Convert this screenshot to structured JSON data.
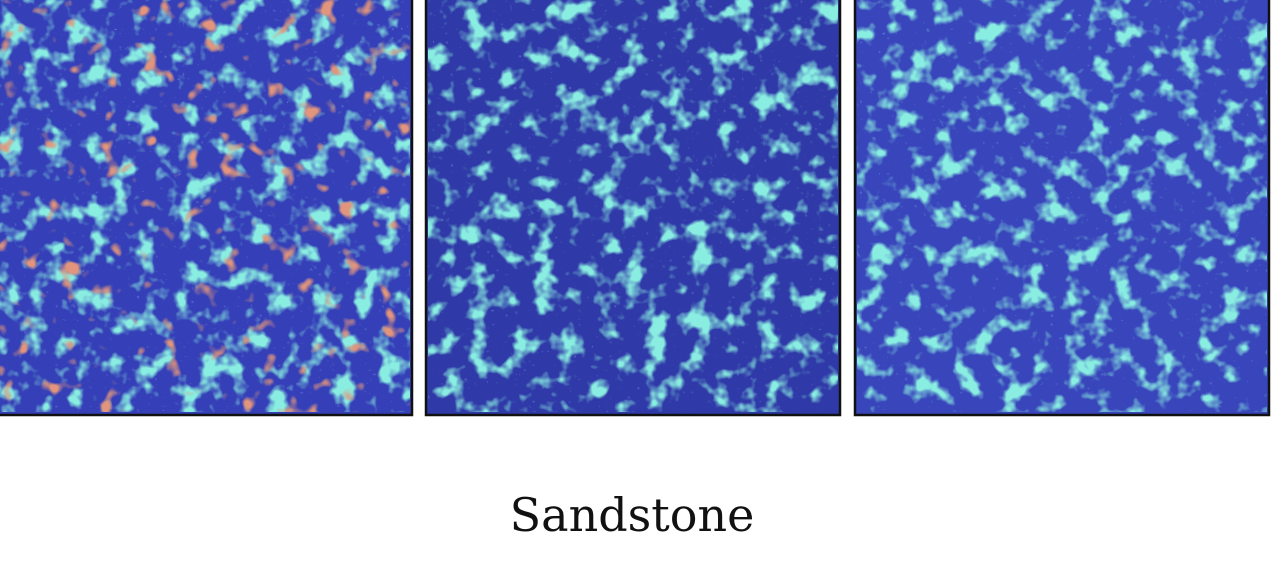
{
  "caption": "Sandstone"
}
